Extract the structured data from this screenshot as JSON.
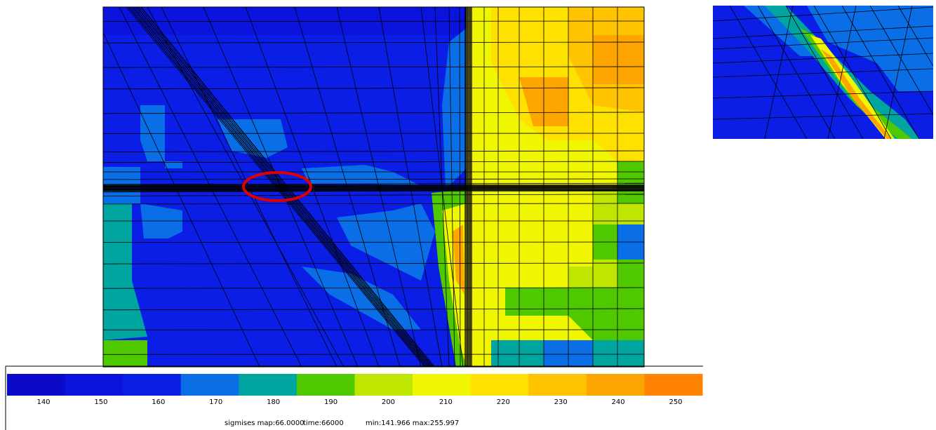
{
  "colorbar": {
    "ticks": [
      140,
      150,
      160,
      170,
      180,
      190,
      200,
      210,
      220,
      230,
      240,
      250
    ],
    "colors": [
      "#0a0ac8",
      "#0a14dc",
      "#0a1ee6",
      "#0a6ee6",
      "#00a5a0",
      "#50c800",
      "#bee600",
      "#f0f500",
      "#ffe100",
      "#ffc300",
      "#ffa500",
      "#ff8200"
    ]
  },
  "status": [
    "sigmises map:66.0000",
    "time:66000",
    "min:141.966 max:255.997"
  ]
}
